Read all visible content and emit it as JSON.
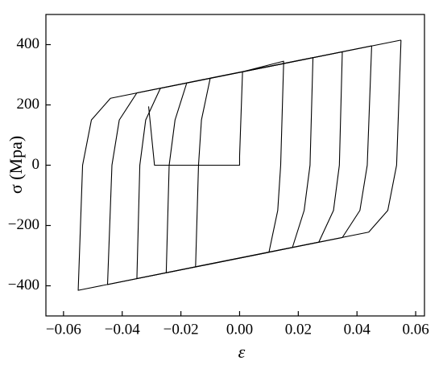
{
  "chart_data": {
    "type": "line",
    "xlabel": "ε",
    "ylabel": "σ (Mpa)",
    "xlim": [
      -0.066,
      0.063
    ],
    "xticks": [
      {
        "value": -0.06,
        "label": "−0.06"
      },
      {
        "value": -0.04,
        "label": "−0.04"
      },
      {
        "value": -0.02,
        "label": "−0.02"
      },
      {
        "value": 0,
        "label": "0.00"
      },
      {
        "value": 0.02,
        "label": "0.02"
      },
      {
        "value": 0.04,
        "label": "0.04"
      },
      {
        "value": 0.06,
        "label": "0.06"
      }
    ],
    "ylim": [
      -500,
      500
    ],
    "yticks": [
      {
        "value": -400,
        "label": "−400"
      },
      {
        "value": -200,
        "label": "−200"
      },
      0,
      200,
      400
    ],
    "series": [
      {
        "color": "#000000",
        "x": [
          -0.031,
          -0.029,
          0,
          0,
          0.001,
          0.015,
          0.015
        ],
        "values": [
          195,
          0,
          0,
          30,
          310,
          345,
          337
        ]
      },
      {
        "color": "#000000",
        "x": [
          0.015,
          0.014,
          0.013,
          0.01,
          -0.015,
          -0.014,
          -0.013,
          -0.01,
          0.015
        ],
        "values": [
          337,
          0,
          -150,
          -289,
          -337,
          0,
          150,
          289,
          337
        ]
      },
      {
        "color": "#000000",
        "x": [
          0.025,
          0.024,
          0.022,
          0.018,
          -0.025,
          -0.024,
          -0.022,
          -0.018,
          0.025
        ],
        "values": [
          357,
          0,
          -150,
          -273,
          -357,
          0,
          150,
          273,
          357
        ]
      },
      {
        "color": "#000000",
        "x": [
          0.035,
          0.034,
          0.032,
          0.027,
          -0.035,
          -0.034,
          -0.032,
          -0.027,
          0.035
        ],
        "values": [
          376,
          0,
          -150,
          -255,
          -376,
          0,
          150,
          255,
          376
        ]
      },
      {
        "color": "#000000",
        "x": [
          0.045,
          0.0435,
          0.041,
          0.035,
          -0.045,
          -0.0435,
          -0.041,
          -0.035,
          0.045
        ],
        "values": [
          396,
          0,
          -150,
          -240,
          -396,
          0,
          150,
          240,
          396
        ]
      },
      {
        "color": "#000000",
        "x": [
          0.055,
          0.0535,
          0.0505,
          0.044,
          -0.055,
          -0.0535,
          -0.0505,
          -0.044,
          0.055
        ],
        "values": [
          415,
          0,
          -150,
          -222,
          -415,
          0,
          150,
          222,
          415
        ]
      }
    ]
  }
}
